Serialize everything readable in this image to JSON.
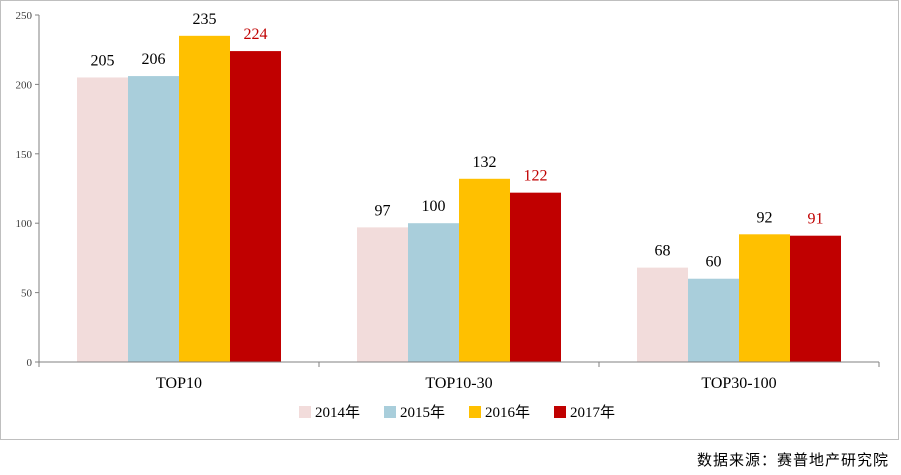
{
  "chart_data": {
    "type": "bar",
    "categories": [
      "TOP10",
      "TOP10-30",
      "TOP30-100"
    ],
    "series": [
      {
        "name": "2014年",
        "values": [
          205,
          97,
          68
        ],
        "color": "#f2dcdb",
        "label_color": "#000000"
      },
      {
        "name": "2015年",
        "values": [
          206,
          100,
          60
        ],
        "color": "#a9cedb",
        "label_color": "#000000"
      },
      {
        "name": "2016年",
        "values": [
          235,
          132,
          92
        ],
        "color": "#ffc000",
        "label_color": "#000000"
      },
      {
        "name": "2017年",
        "values": [
          224,
          122,
          91
        ],
        "color": "#c00000",
        "label_color": "#c00000"
      }
    ],
    "ylim": [
      0,
      250
    ],
    "yticks": [
      "0",
      "50",
      "100",
      "150",
      "200",
      "250"
    ],
    "grid": false,
    "legend_position": "bottom"
  },
  "source": "数据来源：赛普地产研究院"
}
